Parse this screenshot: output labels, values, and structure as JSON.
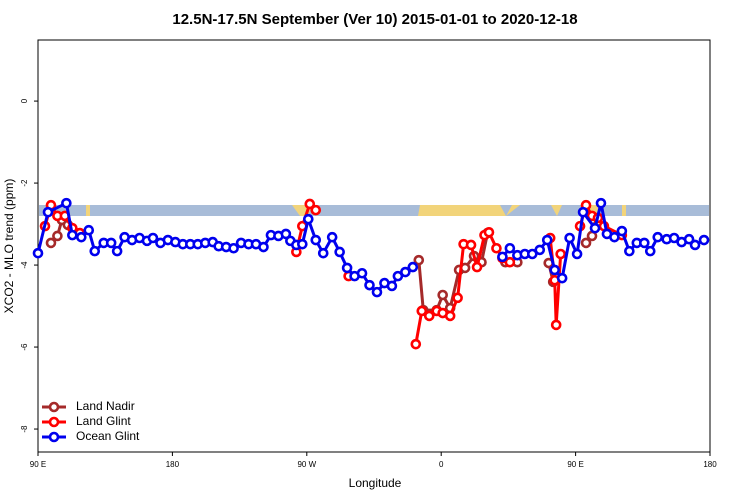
{
  "chart_data": {
    "type": "line",
    "title": "12.5N-17.5N September (Ver 10)   2015-01-01 to 2020-12-18",
    "x_label": "Longitude",
    "y_label": "XCO2 - MLO trend (ppm)",
    "xlim": [
      90,
      540
    ],
    "ylim": [
      -8.56,
      1.49
    ],
    "xticks": [
      {
        "value": 90,
        "label": "90 E"
      },
      180,
      {
        "value": 270,
        "label": "90 W"
      },
      {
        "value": 360,
        "label": "0"
      },
      {
        "value": 450,
        "label": "90 E"
      },
      {
        "value": 540,
        "label": "180"
      }
    ],
    "yticks": [
      0,
      -2,
      -4,
      -6,
      -8
    ],
    "legend": "bottom-left",
    "series": [
      {
        "name": "Land Nadir",
        "color": "#a52a2a",
        "x": [
          98.7,
          103,
          106,
          110,
          null,
          345,
          348,
          357,
          361,
          366,
          372,
          376,
          382,
          387,
          391,
          null,
          403,
          411,
          null,
          432,
          435,
          null,
          457,
          461,
          465
        ],
        "values": [
          -3.46,
          -3.29,
          -2.9,
          -3.02,
          null,
          -3.88,
          -5.1,
          -5.1,
          -4.73,
          -5.05,
          -4.12,
          -4.07,
          -3.78,
          -3.93,
          -3.22,
          null,
          -3.93,
          -3.93,
          null,
          -3.95,
          -4.41,
          null,
          -3.46,
          -3.29,
          -3.02
        ]
      },
      {
        "name": "Land Glint",
        "color": "#ff0000",
        "x": [
          94.7,
          98.7,
          103,
          108,
          113,
          118,
          null,
          263,
          267,
          272,
          276,
          null,
          298,
          null,
          343,
          347,
          352,
          357,
          361,
          366,
          371,
          375,
          380,
          384,
          389,
          392,
          397,
          401,
          406,
          null,
          433,
          436,
          437,
          440,
          null,
          453,
          457,
          461,
          465,
          469,
          481
        ],
        "values": [
          -3.05,
          -2.54,
          -2.8,
          -2.8,
          -3.1,
          -3.22,
          null,
          -3.68,
          -3.05,
          -2.51,
          -2.66,
          null,
          -4.27,
          null,
          -5.93,
          -5.12,
          -5.24,
          -5.12,
          -5.17,
          -5.24,
          -4.8,
          -3.49,
          -3.51,
          -4.05,
          -3.27,
          -3.2,
          -3.59,
          -3.83,
          -3.93,
          null,
          -3.34,
          -4.37,
          -5.46,
          -3.73,
          null,
          -3.05,
          -2.54,
          -2.8,
          -2.85,
          -3.05,
          -3.27
        ]
      },
      {
        "name": "Ocean Glint",
        "color": "#0000ee",
        "x": [
          90,
          96.7,
          109,
          113,
          119,
          124,
          128,
          134,
          139,
          143,
          148,
          153,
          158,
          163,
          167,
          172,
          177,
          182,
          187,
          192,
          197,
          202,
          207,
          211,
          216,
          221,
          226,
          231,
          236,
          241,
          246,
          251,
          256,
          259,
          263,
          267,
          271,
          276,
          281,
          287,
          292,
          297,
          302,
          307,
          312,
          317,
          322,
          327,
          331,
          336,
          341,
          null,
          401,
          406,
          411,
          416,
          421,
          426,
          431,
          436,
          441,
          446,
          451,
          455,
          463,
          467,
          471,
          476,
          481,
          486,
          491,
          496,
          500,
          505,
          511,
          516,
          521,
          526,
          530,
          536
        ],
        "values": [
          -3.71,
          -2.71,
          -2.49,
          -3.27,
          -3.32,
          -3.15,
          -3.66,
          -3.46,
          -3.46,
          -3.66,
          -3.32,
          -3.39,
          -3.34,
          -3.41,
          -3.34,
          -3.46,
          -3.39,
          -3.44,
          -3.49,
          -3.49,
          -3.49,
          -3.46,
          -3.44,
          -3.54,
          -3.56,
          -3.59,
          -3.46,
          -3.49,
          -3.49,
          -3.56,
          -3.27,
          -3.29,
          -3.24,
          -3.41,
          -3.51,
          -3.49,
          -2.88,
          -3.39,
          -3.71,
          -3.32,
          -3.68,
          -4.07,
          -4.27,
          -4.2,
          -4.49,
          -4.66,
          -4.44,
          -4.51,
          -4.27,
          -4.17,
          -4.05,
          null,
          -3.8,
          -3.59,
          -3.76,
          -3.73,
          -3.73,
          -3.63,
          -3.39,
          -4.12,
          -4.32,
          -3.34,
          -3.73,
          -2.71,
          -3.1,
          -2.49,
          -3.24,
          -3.32,
          -3.17,
          -3.66,
          -3.46,
          -3.46,
          -3.66,
          -3.32,
          -3.37,
          -3.34,
          -3.44,
          -3.37,
          -3.51,
          -3.39
        ]
      }
    ]
  }
}
